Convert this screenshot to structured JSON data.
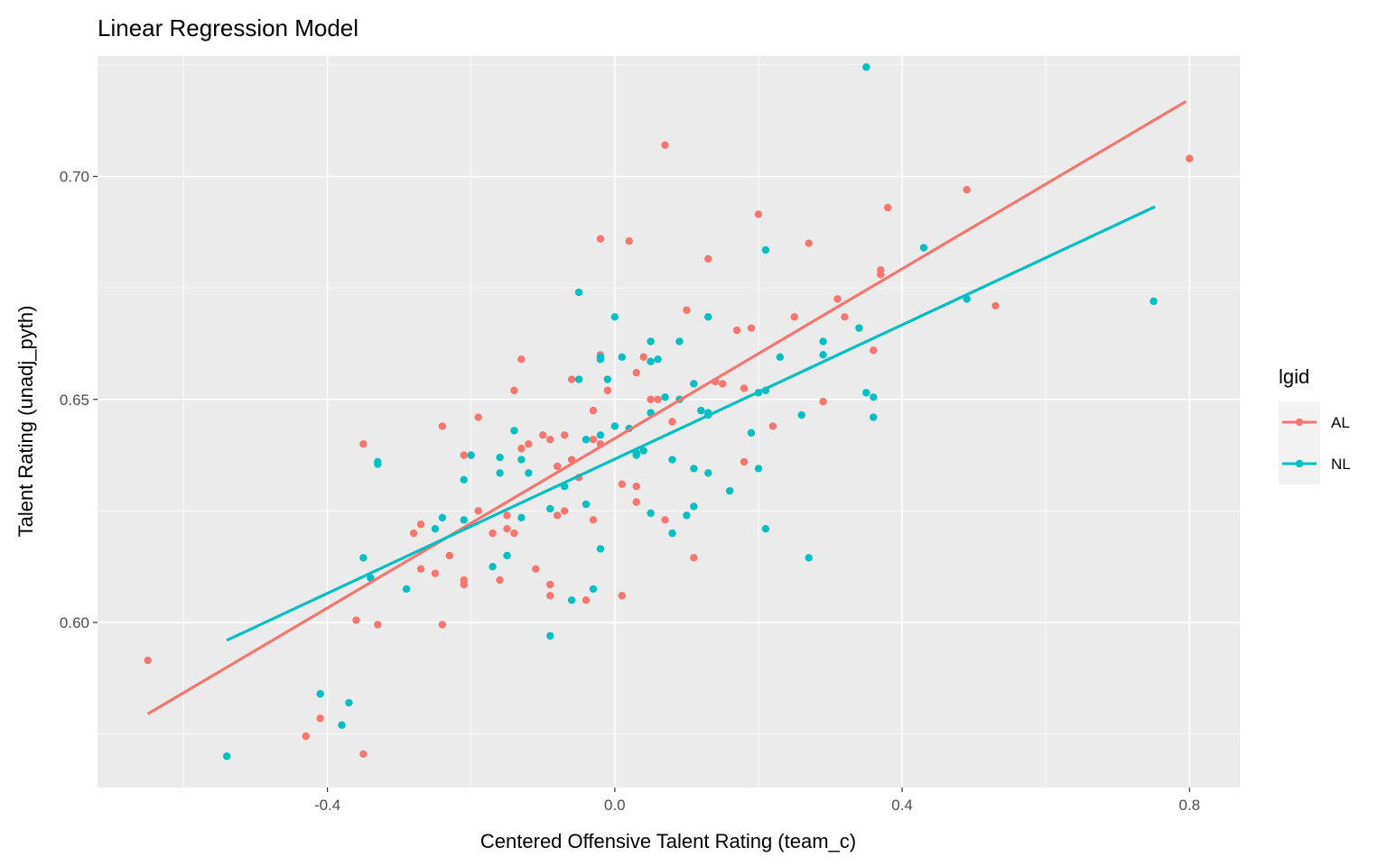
{
  "chart_data": {
    "type": "scatter",
    "title": "Linear Regression Model",
    "xlabel": "Centered Offensive Talent Rating (team_c)",
    "ylabel": "Talent Rating (unadj_pyth)",
    "xlim": [
      -0.72,
      0.87
    ],
    "ylim": [
      0.563,
      0.727
    ],
    "x_ticks": [
      -0.4,
      0.0,
      0.4,
      0.8
    ],
    "x_tick_labels": [
      "-0.4",
      "0.0",
      "0.4",
      "0.8"
    ],
    "y_ticks": [
      0.6,
      0.65,
      0.7
    ],
    "y_tick_labels": [
      "0.60",
      "0.65",
      "0.70"
    ],
    "x_minor_ticks": [
      -0.6,
      -0.2,
      0.2,
      0.6
    ],
    "y_minor_ticks": [
      0.575,
      0.625,
      0.675,
      0.725
    ],
    "grid": true,
    "legend": {
      "title": "lgid",
      "position": "right",
      "entries": [
        "AL",
        "NL"
      ]
    },
    "series": [
      {
        "name": "AL",
        "color": "#F8766D",
        "fit": {
          "x0": -0.65,
          "y0": 0.5795,
          "x1": 0.795,
          "y1": 0.7168
        },
        "points": [
          [
            -0.65,
            0.5915
          ],
          [
            -0.43,
            0.5745
          ],
          [
            -0.41,
            0.5785
          ],
          [
            -0.35,
            0.5705
          ],
          [
            -0.36,
            0.6005
          ],
          [
            -0.35,
            0.64
          ],
          [
            -0.33,
            0.5995
          ],
          [
            -0.28,
            0.62
          ],
          [
            -0.27,
            0.612
          ],
          [
            -0.27,
            0.622
          ],
          [
            -0.25,
            0.611
          ],
          [
            -0.24,
            0.644
          ],
          [
            -0.23,
            0.615
          ],
          [
            -0.24,
            0.5995
          ],
          [
            -0.21,
            0.6095
          ],
          [
            -0.21,
            0.6085
          ],
          [
            -0.21,
            0.6375
          ],
          [
            -0.19,
            0.625
          ],
          [
            -0.19,
            0.646
          ],
          [
            -0.17,
            0.62
          ],
          [
            -0.16,
            0.6095
          ],
          [
            -0.15,
            0.624
          ],
          [
            -0.15,
            0.621
          ],
          [
            -0.14,
            0.62
          ],
          [
            -0.14,
            0.652
          ],
          [
            -0.13,
            0.659
          ],
          [
            -0.13,
            0.639
          ],
          [
            -0.12,
            0.64
          ],
          [
            -0.11,
            0.612
          ],
          [
            -0.1,
            0.642
          ],
          [
            -0.09,
            0.641
          ],
          [
            -0.09,
            0.6085
          ],
          [
            -0.09,
            0.606
          ],
          [
            -0.08,
            0.635
          ],
          [
            -0.08,
            0.624
          ],
          [
            -0.07,
            0.642
          ],
          [
            -0.07,
            0.625
          ],
          [
            -0.06,
            0.6545
          ],
          [
            -0.06,
            0.6365
          ],
          [
            -0.05,
            0.6325
          ],
          [
            -0.04,
            0.605
          ],
          [
            -0.03,
            0.641
          ],
          [
            -0.03,
            0.6475
          ],
          [
            -0.03,
            0.623
          ],
          [
            -0.02,
            0.66
          ],
          [
            -0.02,
            0.6595
          ],
          [
            -0.02,
            0.686
          ],
          [
            -0.02,
            0.64
          ],
          [
            -0.01,
            0.652
          ],
          [
            0.01,
            0.606
          ],
          [
            0.01,
            0.631
          ],
          [
            0.02,
            0.6855
          ],
          [
            0.03,
            0.656
          ],
          [
            0.03,
            0.627
          ],
          [
            0.03,
            0.6305
          ],
          [
            0.04,
            0.6595
          ],
          [
            0.05,
            0.65
          ],
          [
            0.06,
            0.65
          ],
          [
            0.07,
            0.707
          ],
          [
            0.07,
            0.623
          ],
          [
            0.08,
            0.645
          ],
          [
            0.1,
            0.67
          ],
          [
            0.11,
            0.6145
          ],
          [
            0.13,
            0.6815
          ],
          [
            0.14,
            0.654
          ],
          [
            0.15,
            0.6535
          ],
          [
            0.17,
            0.6655
          ],
          [
            0.18,
            0.6525
          ],
          [
            0.18,
            0.636
          ],
          [
            0.19,
            0.666
          ],
          [
            0.2,
            0.6915
          ],
          [
            0.22,
            0.644
          ],
          [
            0.25,
            0.6685
          ],
          [
            0.27,
            0.685
          ],
          [
            0.29,
            0.6495
          ],
          [
            0.31,
            0.6725
          ],
          [
            0.32,
            0.6685
          ],
          [
            0.36,
            0.661
          ],
          [
            0.37,
            0.678
          ],
          [
            0.37,
            0.679
          ],
          [
            0.38,
            0.693
          ],
          [
            0.49,
            0.697
          ],
          [
            0.53,
            0.671
          ],
          [
            0.8,
            0.704
          ]
        ]
      },
      {
        "name": "NL",
        "color": "#00BFC4",
        "fit": {
          "x0": -0.54,
          "y0": 0.596,
          "x1": 0.752,
          "y1": 0.6932
        },
        "points": [
          [
            -0.54,
            0.57
          ],
          [
            -0.41,
            0.584
          ],
          [
            -0.38,
            0.577
          ],
          [
            -0.37,
            0.582
          ],
          [
            -0.35,
            0.6145
          ],
          [
            -0.34,
            0.61
          ],
          [
            -0.33,
            0.636
          ],
          [
            -0.33,
            0.6355
          ],
          [
            -0.29,
            0.6075
          ],
          [
            -0.25,
            0.621
          ],
          [
            -0.24,
            0.6235
          ],
          [
            -0.21,
            0.623
          ],
          [
            -0.21,
            0.632
          ],
          [
            -0.2,
            0.6375
          ],
          [
            -0.17,
            0.6125
          ],
          [
            -0.16,
            0.637
          ],
          [
            -0.16,
            0.6335
          ],
          [
            -0.15,
            0.615
          ],
          [
            -0.14,
            0.643
          ],
          [
            -0.13,
            0.6365
          ],
          [
            -0.13,
            0.6235
          ],
          [
            -0.12,
            0.6335
          ],
          [
            -0.09,
            0.597
          ],
          [
            -0.09,
            0.6255
          ],
          [
            -0.07,
            0.6305
          ],
          [
            -0.06,
            0.605
          ],
          [
            -0.05,
            0.674
          ],
          [
            -0.05,
            0.6545
          ],
          [
            -0.04,
            0.641
          ],
          [
            -0.04,
            0.6265
          ],
          [
            -0.03,
            0.6075
          ],
          [
            -0.02,
            0.642
          ],
          [
            -0.02,
            0.6165
          ],
          [
            -0.02,
            0.659
          ],
          [
            -0.02,
            0.6595
          ],
          [
            -0.01,
            0.6545
          ],
          [
            0.0,
            0.644
          ],
          [
            0.0,
            0.6685
          ],
          [
            0.01,
            0.6595
          ],
          [
            0.02,
            0.6435
          ],
          [
            0.03,
            0.6375
          ],
          [
            0.03,
            0.638
          ],
          [
            0.04,
            0.6385
          ],
          [
            0.05,
            0.663
          ],
          [
            0.05,
            0.6585
          ],
          [
            0.05,
            0.647
          ],
          [
            0.05,
            0.6245
          ],
          [
            0.06,
            0.659
          ],
          [
            0.07,
            0.6505
          ],
          [
            0.08,
            0.6365
          ],
          [
            0.08,
            0.62
          ],
          [
            0.09,
            0.663
          ],
          [
            0.09,
            0.65
          ],
          [
            0.1,
            0.624
          ],
          [
            0.11,
            0.6535
          ],
          [
            0.11,
            0.6345
          ],
          [
            0.11,
            0.626
          ],
          [
            0.12,
            0.6475
          ],
          [
            0.13,
            0.6685
          ],
          [
            0.13,
            0.647
          ],
          [
            0.13,
            0.6465
          ],
          [
            0.13,
            0.6335
          ],
          [
            0.16,
            0.6295
          ],
          [
            0.19,
            0.6425
          ],
          [
            0.2,
            0.6515
          ],
          [
            0.2,
            0.6345
          ],
          [
            0.21,
            0.6835
          ],
          [
            0.21,
            0.652
          ],
          [
            0.21,
            0.621
          ],
          [
            0.23,
            0.6595
          ],
          [
            0.26,
            0.6465
          ],
          [
            0.27,
            0.6145
          ],
          [
            0.29,
            0.663
          ],
          [
            0.29,
            0.66
          ],
          [
            0.34,
            0.666
          ],
          [
            0.35,
            0.6515
          ],
          [
            0.35,
            0.7245
          ],
          [
            0.36,
            0.646
          ],
          [
            0.36,
            0.6505
          ],
          [
            0.43,
            0.684
          ],
          [
            0.49,
            0.6725
          ],
          [
            0.75,
            0.672
          ]
        ]
      }
    ]
  }
}
